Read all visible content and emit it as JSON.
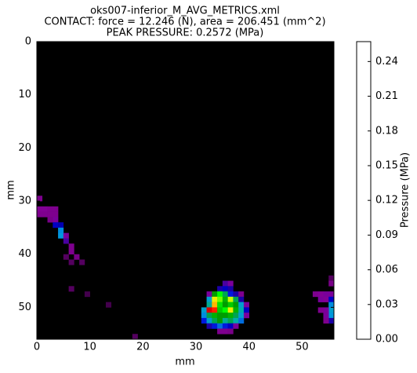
{
  "chart_data": {
    "type": "heatmap",
    "title": [
      "oks007-inferior_M_AVG_METRICS.xml",
      "CONTACT: force = 12.246 (N), area = 206.451 (mm^2)",
      "PEAK PRESSURE: 0.2572 (MPa)"
    ],
    "x_label": "mm",
    "y_label": "mm",
    "colorbar_label": "Pressure (MPa)",
    "colormap": "nipy_spectral",
    "xlim": [
      0,
      56
    ],
    "ylim": [
      56,
      0
    ],
    "xticks": [
      0,
      10,
      20,
      30,
      40,
      50
    ],
    "yticks": [
      0,
      10,
      20,
      30,
      40,
      50
    ],
    "clim": [
      0,
      0.2572
    ],
    "cticks": [
      {
        "value": 0,
        "label": "0.00"
      },
      0.03,
      0.06,
      0.09,
      0.12,
      0.15,
      0.18,
      0.21,
      0.24
    ],
    "x": [
      0,
      0,
      1,
      2,
      3,
      0,
      1,
      2,
      3,
      3,
      2,
      3,
      4,
      4,
      4,
      5,
      5,
      6,
      6,
      7,
      5,
      8,
      6,
      35,
      36,
      34,
      35,
      36,
      32,
      33,
      34,
      35,
      36,
      37,
      38,
      32,
      33,
      34,
      35,
      36,
      37,
      38,
      32,
      33,
      34,
      35,
      36,
      37,
      38,
      39,
      31,
      32,
      33,
      34,
      35,
      36,
      37,
      38,
      39,
      31,
      32,
      33,
      34,
      35,
      36,
      37,
      38,
      39,
      31,
      32,
      33,
      34,
      35,
      36,
      37,
      38,
      32,
      33,
      34,
      35,
      36,
      37,
      34,
      35,
      36,
      52,
      53,
      54,
      55,
      53,
      54,
      55,
      55,
      55,
      55,
      54,
      54,
      53,
      55,
      54,
      55,
      55,
      6,
      9,
      18,
      13
    ],
    "y": [
      29,
      31,
      31,
      31,
      31,
      32,
      32,
      32,
      32,
      33,
      33,
      34,
      34,
      35,
      36,
      36,
      37,
      38,
      39,
      40,
      40,
      41,
      41,
      45,
      45,
      46,
      46,
      46,
      47,
      47,
      47,
      47,
      47,
      47,
      47,
      48,
      48,
      48,
      48,
      48,
      48,
      48,
      49,
      49,
      49,
      49,
      49,
      49,
      49,
      49,
      50,
      50,
      50,
      50,
      50,
      50,
      50,
      50,
      50,
      51,
      51,
      51,
      51,
      51,
      51,
      51,
      51,
      51,
      52,
      52,
      52,
      52,
      52,
      52,
      52,
      52,
      53,
      53,
      53,
      53,
      53,
      53,
      54,
      54,
      54,
      47,
      47,
      47,
      47,
      48,
      48,
      48,
      49,
      50,
      51,
      50,
      51,
      50,
      52,
      52,
      44,
      45,
      46,
      47,
      55,
      49
    ],
    "values": [
      0.02,
      0.025,
      0.025,
      0.02,
      0.02,
      0.02,
      0.02,
      0.02,
      0.02,
      0.03,
      0.015,
      0.05,
      0.045,
      0.08,
      0.085,
      0.03,
      0.035,
      0.02,
      0.02,
      0.015,
      0.01,
      0.01,
      0.01,
      0.035,
      0.03,
      0.04,
      0.05,
      0.04,
      0.03,
      0.13,
      0.17,
      0.12,
      0.06,
      0.04,
      0.02,
      0.09,
      0.2,
      0.18,
      0.14,
      0.19,
      0.12,
      0.04,
      0.11,
      0.22,
      0.16,
      0.13,
      0.15,
      0.13,
      0.09,
      0.03,
      0.09,
      0.2572,
      0.24,
      0.15,
      0.17,
      0.2,
      0.14,
      0.1,
      0.05,
      0.08,
      0.12,
      0.14,
      0.13,
      0.13,
      0.14,
      0.12,
      0.09,
      0.03,
      0.06,
      0.09,
      0.12,
      0.13,
      0.11,
      0.12,
      0.1,
      0.07,
      0.04,
      0.06,
      0.07,
      0.06,
      0.05,
      0.03,
      0.02,
      0.02,
      0.015,
      0.02,
      0.025,
      0.03,
      0.03,
      0.03,
      0.025,
      0.05,
      0.08,
      0.09,
      0.085,
      0.03,
      0.03,
      0.02,
      0.04,
      0.02,
      0.01,
      0.015,
      0.01,
      0.008,
      0.01,
      0.008
    ]
  }
}
